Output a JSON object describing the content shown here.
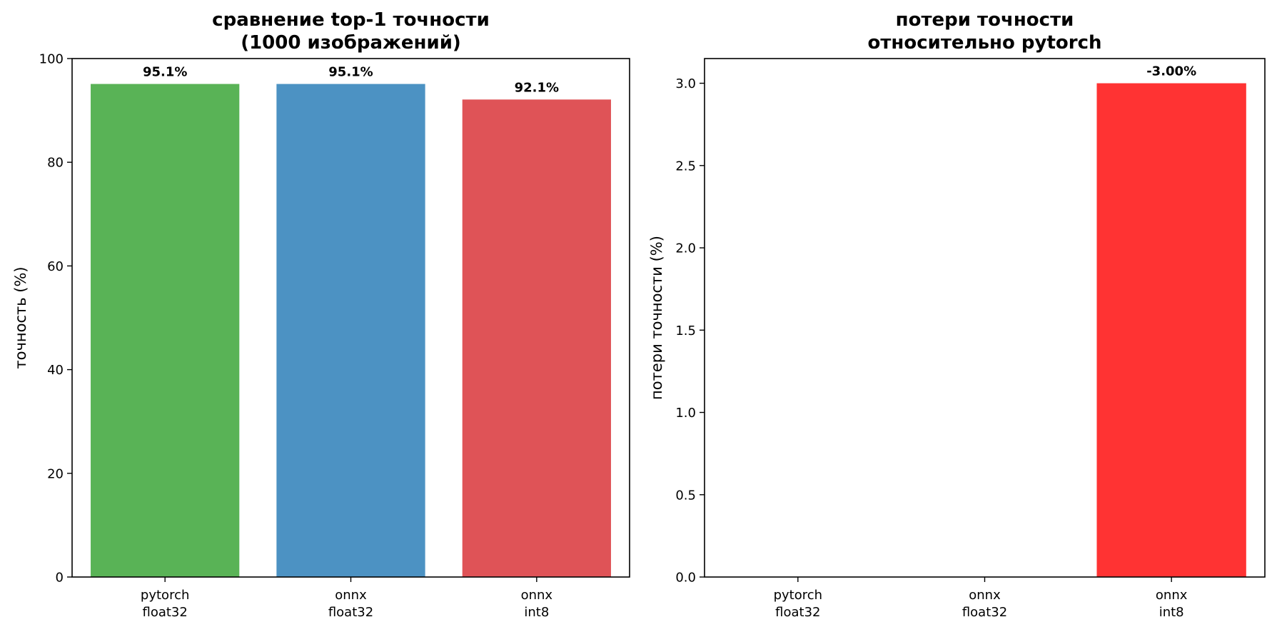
{
  "chart_data": [
    {
      "type": "bar",
      "title_lines": [
        "сравнение top-1 точности",
        "(1000 изображений)"
      ],
      "xlabel": "",
      "ylabel": "точность (%)",
      "categories": [
        [
          "pytorch",
          "float32"
        ],
        [
          "onnx",
          "float32"
        ],
        [
          "onnx",
          "int8"
        ]
      ],
      "values": [
        95.1,
        95.1,
        92.1
      ],
      "bar_labels": [
        "95.1%",
        "95.1%",
        "92.1%"
      ],
      "colors": [
        "#59b356",
        "#4c92c3",
        "#df5357"
      ],
      "ylim": [
        0,
        100
      ],
      "yticks": [
        0,
        20,
        40,
        60,
        80,
        100
      ],
      "ytick_labels": [
        "0",
        "20",
        "40",
        "60",
        "80",
        "100"
      ],
      "grid": false
    },
    {
      "type": "bar",
      "title_lines": [
        "потери точности",
        "относительно pytorch"
      ],
      "xlabel": "",
      "ylabel": "потери точности (%)",
      "categories": [
        [
          "pytorch",
          "float32"
        ],
        [
          "onnx",
          "float32"
        ],
        [
          "onnx",
          "int8"
        ]
      ],
      "values": [
        0,
        0,
        3.0
      ],
      "bar_labels": [
        "",
        "",
        "-3.00%"
      ],
      "colors": [
        "#ff3333",
        "#ff3333",
        "#ff3333"
      ],
      "ylim": [
        0,
        3.15
      ],
      "yticks": [
        0.0,
        0.5,
        1.0,
        1.5,
        2.0,
        2.5,
        3.0
      ],
      "ytick_labels": [
        "0.0",
        "0.5",
        "1.0",
        "1.5",
        "2.0",
        "2.5",
        "3.0"
      ],
      "grid": false
    }
  ]
}
